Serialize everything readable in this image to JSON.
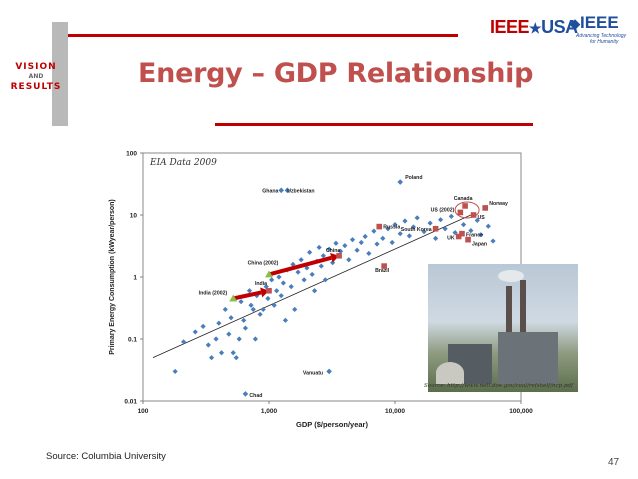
{
  "slide": {
    "title": "Energy – GDP Relationship",
    "source": "Source: Columbia University",
    "page_number": "47",
    "photo_caption": "Source: http://www.netl.doe.gov/coal/refshelf/ncp.pdf",
    "colors": {
      "title": "#c0504d",
      "accent_line": "#c00000",
      "marker": "#4a7ebb",
      "highlight": "#c0504d",
      "arrow": "#c00000"
    }
  },
  "logos": {
    "vision": {
      "line1": "VISION",
      "line2": "AND",
      "line3": "RESULTS"
    },
    "ieee_usa": {
      "ieee": "IEEE",
      "usa": "USA"
    },
    "ieee": {
      "name": "IEEE",
      "tagline1": "Advancing Technology",
      "tagline2": "for Humanity"
    }
  },
  "chart_data": {
    "type": "scatter",
    "title": "EIA Data 2009",
    "xlabel": "GDP ($/person/year)",
    "ylabel": "Primary Energy Consumption (kWyear/person)",
    "x_scale": "log",
    "y_scale": "log",
    "xlim": [
      100,
      100000
    ],
    "ylim": [
      0.01,
      100
    ],
    "x_ticks": [
      "100",
      "1,000",
      "10,000",
      "100,000"
    ],
    "y_ticks": [
      "100",
      "10",
      "1",
      "0.1",
      "0.01"
    ],
    "trendline": [
      [
        120,
        0.05
      ],
      [
        40000,
        10
      ]
    ],
    "labeled_points": [
      {
        "name": "Ghana",
        "x": 1400,
        "y": 25,
        "shape": "diamond"
      },
      {
        "name": "Uzbekistan",
        "x": 1250,
        "y": 25,
        "shape": "diamond"
      },
      {
        "name": "Poland",
        "x": 11000,
        "y": 34,
        "shape": "diamond"
      },
      {
        "name": "Canada",
        "x": 36000,
        "y": 14,
        "shape": "square"
      },
      {
        "name": "Norway",
        "x": 52000,
        "y": 13,
        "shape": "square"
      },
      {
        "name": "US (2002)",
        "x": 33000,
        "y": 11,
        "shape": "square"
      },
      {
        "name": "US",
        "x": 42000,
        "y": 10,
        "shape": "square"
      },
      {
        "name": "South Korea",
        "x": 21000,
        "y": 6,
        "shape": "square"
      },
      {
        "name": "France",
        "x": 34000,
        "y": 5,
        "shape": "square"
      },
      {
        "name": "Russia",
        "x": 7500,
        "y": 6.5,
        "shape": "square"
      },
      {
        "name": "UK",
        "x": 32000,
        "y": 4.5,
        "shape": "square"
      },
      {
        "name": "Japan",
        "x": 38000,
        "y": 4,
        "shape": "square"
      },
      {
        "name": "China",
        "x": 3600,
        "y": 2.2,
        "shape": "square"
      },
      {
        "name": "Brazil",
        "x": 8200,
        "y": 1.5,
        "shape": "square"
      },
      {
        "name": "China (2002)",
        "x": 1000,
        "y": 1.1,
        "shape": "triangle"
      },
      {
        "name": "India",
        "x": 1000,
        "y": 0.6,
        "shape": "square"
      },
      {
        "name": "India (2002)",
        "x": 520,
        "y": 0.45,
        "shape": "triangle"
      },
      {
        "name": "Vanuatu",
        "x": 3000,
        "y": 0.03,
        "shape": "diamond"
      },
      {
        "name": "Chad",
        "x": 650,
        "y": 0.013,
        "shape": "diamond"
      }
    ],
    "arrows": [
      {
        "from": "China (2002)",
        "to": "China"
      },
      {
        "from": "India (2002)",
        "to": "India"
      }
    ],
    "points": [
      [
        180,
        0.03
      ],
      [
        210,
        0.09
      ],
      [
        260,
        0.13
      ],
      [
        300,
        0.16
      ],
      [
        330,
        0.08
      ],
      [
        350,
        0.05
      ],
      [
        380,
        0.1
      ],
      [
        400,
        0.18
      ],
      [
        420,
        0.06
      ],
      [
        450,
        0.3
      ],
      [
        480,
        0.12
      ],
      [
        500,
        0.22
      ],
      [
        520,
        0.06
      ],
      [
        550,
        0.05
      ],
      [
        580,
        0.1
      ],
      [
        600,
        0.4
      ],
      [
        630,
        0.2
      ],
      [
        650,
        0.15
      ],
      [
        700,
        0.6
      ],
      [
        720,
        0.35
      ],
      [
        750,
        0.3
      ],
      [
        780,
        0.1
      ],
      [
        800,
        0.5
      ],
      [
        850,
        0.25
      ],
      [
        900,
        0.3
      ],
      [
        950,
        0.7
      ],
      [
        980,
        0.45
      ],
      [
        1050,
        0.9
      ],
      [
        1100,
        0.35
      ],
      [
        1150,
        0.6
      ],
      [
        1200,
        1.0
      ],
      [
        1250,
        0.5
      ],
      [
        1300,
        0.8
      ],
      [
        1350,
        0.2
      ],
      [
        1400,
        1.3
      ],
      [
        1500,
        0.7
      ],
      [
        1550,
        1.6
      ],
      [
        1600,
        0.3
      ],
      [
        1700,
        1.2
      ],
      [
        1800,
        1.9
      ],
      [
        1900,
        0.9
      ],
      [
        2000,
        1.4
      ],
      [
        2100,
        2.5
      ],
      [
        2200,
        1.1
      ],
      [
        2300,
        0.6
      ],
      [
        2400,
        1.8
      ],
      [
        2500,
        3.0
      ],
      [
        2600,
        1.5
      ],
      [
        2700,
        2.2
      ],
      [
        2800,
        0.9
      ],
      [
        3000,
        2.8
      ],
      [
        3200,
        1.7
      ],
      [
        3400,
        3.5
      ],
      [
        3700,
        2.6
      ],
      [
        4000,
        3.2
      ],
      [
        4300,
        1.9
      ],
      [
        4600,
        4.0
      ],
      [
        5000,
        2.7
      ],
      [
        5400,
        3.6
      ],
      [
        5800,
        4.5
      ],
      [
        6200,
        2.4
      ],
      [
        6800,
        5.5
      ],
      [
        7200,
        3.4
      ],
      [
        8000,
        4.2
      ],
      [
        8800,
        6.0
      ],
      [
        9500,
        3.6
      ],
      [
        10000,
        7.0
      ],
      [
        11000,
        5.0
      ],
      [
        12000,
        8.0
      ],
      [
        13000,
        4.6
      ],
      [
        14000,
        6.4
      ],
      [
        15000,
        9.0
      ],
      [
        17000,
        5.4
      ],
      [
        19000,
        7.4
      ],
      [
        21000,
        4.2
      ],
      [
        23000,
        8.4
      ],
      [
        25000,
        6.0
      ],
      [
        28000,
        9.5
      ],
      [
        30000,
        5.2
      ],
      [
        35000,
        7.0
      ],
      [
        40000,
        5.6
      ],
      [
        45000,
        8.2
      ],
      [
        48000,
        4.8
      ],
      [
        55000,
        6.6
      ],
      [
        60000,
        3.8
      ]
    ]
  }
}
